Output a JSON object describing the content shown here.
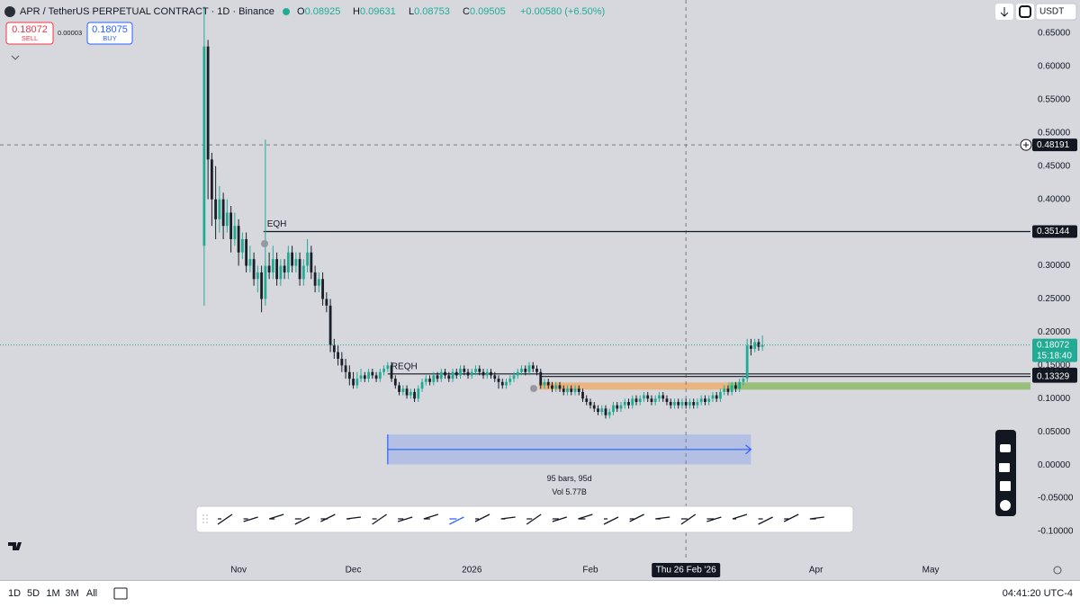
{
  "header": {
    "symbol": "APR / TetherUS PERPETUAL CONTRACT · 1D · Binance",
    "ohlc": [
      {
        "label": "O",
        "value": 0.08925
      },
      {
        "label": "H",
        "value": 0.09631
      },
      {
        "label": "L",
        "value": 0.08753
      },
      {
        "label": "C",
        "value": 0.09505
      }
    ],
    "change": "+0.00580 (+6.50%)",
    "currency": "USDT"
  },
  "trade": {
    "sell": {
      "price": 0.18072,
      "label": "SELL"
    },
    "spread": 3e-05,
    "buy": {
      "price": 0.18075,
      "label": "BUY"
    }
  },
  "footer": {
    "timeframes": [
      "1D",
      "5D",
      "1M",
      "3M",
      "All"
    ],
    "clock": "04:41:20 UTC-4"
  },
  "chart_data": {
    "type": "candlestick",
    "up_color": "#22ab94",
    "down_color": "#1b1f27",
    "xlim": [
      -31.4,
      238.1
    ],
    "ylim": [
      -0.1392,
      0.7
    ],
    "xticks": [
      {
        "value": 31,
        "label": "Nov"
      },
      {
        "value": 61,
        "label": "Dec"
      },
      {
        "value": 92,
        "label": "2026"
      },
      {
        "value": 123,
        "label": "Feb"
      },
      {
        "value": 182,
        "label": "Apr"
      },
      {
        "value": 212,
        "label": "May"
      }
    ],
    "yticks": [
      {
        "value": 0.65,
        "label": "0.65000"
      },
      {
        "value": 0.6,
        "label": "0.60000"
      },
      {
        "value": 0.55,
        "label": "0.55000"
      },
      {
        "value": 0.5,
        "label": "0.50000"
      },
      {
        "value": 0.45,
        "label": "0.45000"
      },
      {
        "value": 0.4,
        "label": "0.40000"
      },
      {
        "value": 0.35,
        "label": "0.35000"
      },
      {
        "value": 0.3,
        "label": "0.30000"
      },
      {
        "value": 0.25,
        "label": "0.25000"
      },
      {
        "value": 0.2,
        "label": "0.20000"
      },
      {
        "value": 0.15,
        "label": "0.15000"
      },
      {
        "value": 0.1,
        "label": "0.10000"
      },
      {
        "value": 0.05,
        "label": "0.05000"
      },
      {
        "value": 0,
        "label": "0.00000"
      },
      {
        "value": -0.05,
        "label": "-0.05000"
      },
      {
        "value": -0.1,
        "label": "-0.10000"
      }
    ],
    "grid": false,
    "candles": {
      "x": [
        22,
        23,
        24,
        25,
        26,
        27,
        28,
        29,
        30,
        31,
        32,
        33,
        34,
        35,
        36,
        37,
        38,
        39,
        40,
        41,
        42,
        43,
        44,
        45,
        46,
        47,
        48,
        49,
        50,
        51,
        52,
        53,
        54,
        55,
        56,
        57,
        58,
        59,
        60,
        61,
        62,
        63,
        64,
        65,
        66,
        67,
        68,
        69,
        70,
        71,
        72,
        73,
        74,
        75,
        76,
        77,
        78,
        79,
        80,
        81,
        82,
        83,
        84,
        85,
        86,
        87,
        88,
        89,
        90,
        91,
        92,
        93,
        94,
        95,
        96,
        97,
        98,
        99,
        100,
        101,
        102,
        103,
        104,
        105,
        106,
        107,
        108,
        109,
        110,
        111,
        112,
        113,
        114,
        115,
        116,
        117,
        118,
        119,
        120,
        121,
        122,
        123,
        124,
        125,
        126,
        127,
        128,
        129,
        130,
        131,
        132,
        133,
        134,
        135,
        136,
        137,
        138,
        139,
        140,
        141,
        142,
        143,
        144,
        145,
        146,
        147,
        148,
        149,
        150,
        151,
        152,
        153,
        154,
        155,
        156,
        157,
        158,
        159,
        160,
        161,
        162,
        163,
        164,
        165,
        166,
        167,
        168
      ],
      "open": [
        0.33,
        0.63,
        0.46,
        0.4,
        0.37,
        0.4,
        0.36,
        0.38,
        0.34,
        0.36,
        0.32,
        0.34,
        0.3,
        0.31,
        0.28,
        0.29,
        0.25,
        0.3,
        0.29,
        0.31,
        0.28,
        0.3,
        0.29,
        0.32,
        0.3,
        0.31,
        0.28,
        0.3,
        0.32,
        0.29,
        0.27,
        0.28,
        0.25,
        0.24,
        0.18,
        0.17,
        0.16,
        0.15,
        0.14,
        0.13,
        0.12,
        0.13,
        0.135,
        0.13,
        0.14,
        0.135,
        0.13,
        0.14,
        0.145,
        0.15,
        0.13,
        0.12,
        0.11,
        0.115,
        0.105,
        0.11,
        0.1,
        0.115,
        0.125,
        0.13,
        0.125,
        0.135,
        0.13,
        0.14,
        0.135,
        0.13,
        0.14,
        0.135,
        0.145,
        0.14,
        0.135,
        0.14,
        0.145,
        0.14,
        0.135,
        0.14,
        0.135,
        0.13,
        0.125,
        0.12,
        0.125,
        0.13,
        0.135,
        0.14,
        0.145,
        0.14,
        0.15,
        0.145,
        0.14,
        0.12,
        0.125,
        0.12,
        0.115,
        0.12,
        0.115,
        0.11,
        0.115,
        0.11,
        0.115,
        0.11,
        0.1,
        0.095,
        0.09,
        0.085,
        0.08,
        0.085,
        0.075,
        0.08,
        0.09,
        0.085,
        0.09,
        0.095,
        0.09,
        0.1,
        0.095,
        0.1,
        0.105,
        0.1,
        0.095,
        0.1,
        0.105,
        0.1,
        0.095,
        0.09,
        0.095,
        0.09,
        0.095,
        0.09,
        0.095,
        0.09,
        0.095,
        0.1,
        0.095,
        0.1,
        0.105,
        0.1,
        0.11,
        0.115,
        0.11,
        0.12,
        0.115,
        0.125,
        0.13,
        0.18,
        0.175,
        0.185,
        0.178
      ],
      "high": [
        0.69,
        0.64,
        0.47,
        0.45,
        0.42,
        0.41,
        0.4,
        0.39,
        0.38,
        0.37,
        0.35,
        0.35,
        0.33,
        0.32,
        0.3,
        0.3,
        0.49,
        0.32,
        0.33,
        0.32,
        0.31,
        0.31,
        0.33,
        0.33,
        0.32,
        0.32,
        0.31,
        0.34,
        0.33,
        0.3,
        0.29,
        0.29,
        0.26,
        0.25,
        0.19,
        0.18,
        0.17,
        0.16,
        0.15,
        0.14,
        0.14,
        0.145,
        0.14,
        0.145,
        0.145,
        0.14,
        0.145,
        0.15,
        0.155,
        0.155,
        0.135,
        0.125,
        0.12,
        0.12,
        0.115,
        0.115,
        0.12,
        0.13,
        0.135,
        0.135,
        0.14,
        0.14,
        0.145,
        0.145,
        0.14,
        0.145,
        0.145,
        0.15,
        0.15,
        0.145,
        0.145,
        0.15,
        0.15,
        0.145,
        0.145,
        0.145,
        0.14,
        0.135,
        0.13,
        0.13,
        0.135,
        0.14,
        0.145,
        0.15,
        0.15,
        0.155,
        0.155,
        0.15,
        0.145,
        0.13,
        0.13,
        0.125,
        0.125,
        0.125,
        0.12,
        0.12,
        0.12,
        0.12,
        0.12,
        0.115,
        0.105,
        0.1,
        0.095,
        0.09,
        0.09,
        0.09,
        0.085,
        0.095,
        0.095,
        0.095,
        0.1,
        0.1,
        0.105,
        0.105,
        0.105,
        0.11,
        0.11,
        0.105,
        0.105,
        0.11,
        0.11,
        0.105,
        0.1,
        0.1,
        0.1,
        0.1,
        0.1,
        0.1,
        0.1,
        0.1,
        0.105,
        0.105,
        0.105,
        0.11,
        0.11,
        0.115,
        0.12,
        0.12,
        0.125,
        0.125,
        0.13,
        0.135,
        0.19,
        0.19,
        0.19,
        0.19,
        0.195
      ],
      "low": [
        0.24,
        0.4,
        0.36,
        0.34,
        0.35,
        0.34,
        0.35,
        0.32,
        0.33,
        0.3,
        0.31,
        0.29,
        0.29,
        0.27,
        0.26,
        0.23,
        0.24,
        0.28,
        0.28,
        0.27,
        0.27,
        0.28,
        0.28,
        0.29,
        0.29,
        0.27,
        0.27,
        0.29,
        0.28,
        0.26,
        0.26,
        0.24,
        0.23,
        0.17,
        0.16,
        0.15,
        0.14,
        0.13,
        0.12,
        0.115,
        0.115,
        0.125,
        0.125,
        0.125,
        0.13,
        0.125,
        0.125,
        0.135,
        0.14,
        0.125,
        0.115,
        0.105,
        0.105,
        0.1,
        0.1,
        0.095,
        0.095,
        0.11,
        0.12,
        0.12,
        0.12,
        0.125,
        0.125,
        0.13,
        0.125,
        0.125,
        0.13,
        0.13,
        0.135,
        0.13,
        0.13,
        0.135,
        0.135,
        0.13,
        0.13,
        0.13,
        0.125,
        0.115,
        0.115,
        0.115,
        0.12,
        0.125,
        0.13,
        0.135,
        0.135,
        0.135,
        0.14,
        0.135,
        0.115,
        0.115,
        0.115,
        0.11,
        0.11,
        0.11,
        0.105,
        0.105,
        0.105,
        0.105,
        0.105,
        0.095,
        0.09,
        0.085,
        0.08,
        0.075,
        0.075,
        0.07,
        0.07,
        0.075,
        0.08,
        0.08,
        0.085,
        0.085,
        0.085,
        0.09,
        0.09,
        0.095,
        0.095,
        0.09,
        0.09,
        0.095,
        0.095,
        0.09,
        0.085,
        0.085,
        0.085,
        0.085,
        0.085,
        0.085,
        0.085,
        0.085,
        0.09,
        0.09,
        0.09,
        0.095,
        0.095,
        0.095,
        0.105,
        0.105,
        0.105,
        0.11,
        0.11,
        0.12,
        0.125,
        0.165,
        0.17,
        0.172,
        0.172
      ],
      "close": [
        0.63,
        0.46,
        0.4,
        0.37,
        0.4,
        0.36,
        0.38,
        0.34,
        0.36,
        0.32,
        0.34,
        0.3,
        0.31,
        0.28,
        0.29,
        0.25,
        0.3,
        0.29,
        0.31,
        0.28,
        0.3,
        0.29,
        0.32,
        0.3,
        0.31,
        0.28,
        0.3,
        0.32,
        0.29,
        0.27,
        0.28,
        0.25,
        0.24,
        0.18,
        0.17,
        0.16,
        0.15,
        0.14,
        0.13,
        0.12,
        0.13,
        0.135,
        0.13,
        0.14,
        0.135,
        0.13,
        0.14,
        0.145,
        0.15,
        0.13,
        0.12,
        0.11,
        0.115,
        0.105,
        0.11,
        0.1,
        0.115,
        0.125,
        0.13,
        0.125,
        0.135,
        0.13,
        0.14,
        0.135,
        0.13,
        0.14,
        0.135,
        0.145,
        0.14,
        0.135,
        0.14,
        0.145,
        0.14,
        0.135,
        0.14,
        0.135,
        0.13,
        0.125,
        0.12,
        0.125,
        0.13,
        0.135,
        0.14,
        0.145,
        0.14,
        0.15,
        0.145,
        0.14,
        0.12,
        0.125,
        0.12,
        0.115,
        0.12,
        0.115,
        0.11,
        0.115,
        0.11,
        0.115,
        0.11,
        0.1,
        0.095,
        0.09,
        0.085,
        0.08,
        0.085,
        0.075,
        0.08,
        0.09,
        0.085,
        0.09,
        0.095,
        0.09,
        0.1,
        0.095,
        0.1,
        0.105,
        0.1,
        0.095,
        0.1,
        0.105,
        0.1,
        0.095,
        0.09,
        0.095,
        0.09,
        0.095,
        0.09,
        0.095,
        0.09,
        0.095,
        0.1,
        0.095,
        0.1,
        0.105,
        0.1,
        0.11,
        0.115,
        0.11,
        0.12,
        0.115,
        0.125,
        0.13,
        0.18,
        0.175,
        0.185,
        0.178,
        0.18072
      ]
    },
    "levels": [
      {
        "label": "EQH",
        "value": 0.35144,
        "x_start": 37.5
      },
      {
        "label": "REQH",
        "value": 0.13716,
        "x_start": 70
      },
      {
        "value": 0.13329,
        "x_start": 110
      }
    ],
    "zones": [
      {
        "y": [
          0.1135,
          0.1243
        ],
        "x_start": 109.5,
        "color": "#f0a860"
      },
      {
        "y": [
          0.1135,
          0.1243
        ],
        "x_start": 159,
        "color": "#7cc47a"
      }
    ],
    "measure": {
      "x": [
        70,
        165
      ],
      "y": [
        0.001,
        0.046
      ],
      "label": "95 bars, 95d",
      "volume": "Vol 5.77B",
      "color": "#2962ff"
    },
    "last": {
      "value": 0.18072,
      "countdown": "15:18:40",
      "color": "#22ab94"
    },
    "crosshair": {
      "x": {
        "value": 148,
        "label": "Thu 26 Feb '26"
      },
      "y": 0.48191
    }
  }
}
